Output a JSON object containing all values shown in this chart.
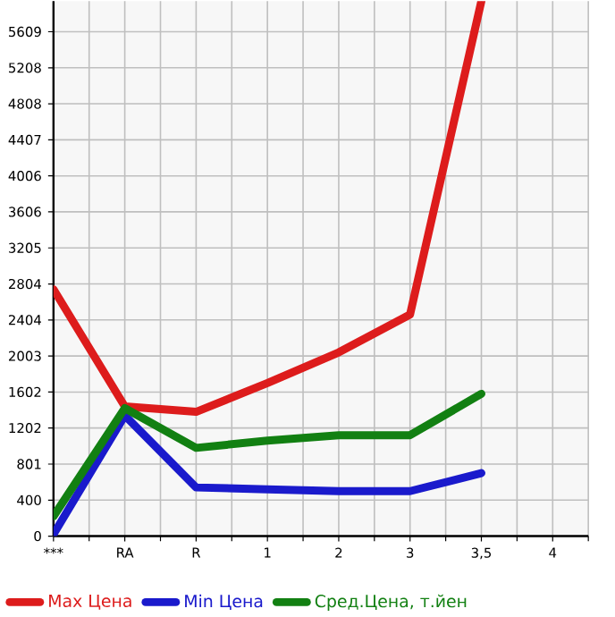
{
  "chart_data": {
    "type": "line",
    "categories": [
      "***",
      "RA",
      "R",
      "1",
      "2",
      "3",
      "3,5",
      "4"
    ],
    "series": [
      {
        "name": "Max Цена",
        "color": "#dd1c1c",
        "values": [
          2744,
          1442,
          1382,
          1702,
          2043,
          2464,
          5950,
          null
        ]
      },
      {
        "name": "Min Цена",
        "color": "#1a1acc",
        "values": [
          20,
          1342,
          541,
          521,
          500,
          500,
          701,
          null
        ]
      },
      {
        "name": "Сред.Цена, т.йен",
        "color": "#128012",
        "values": [
          220,
          1422,
          981,
          1062,
          1122,
          1122,
          1582,
          null
        ]
      }
    ],
    "ylim": [
      0,
      5950
    ],
    "yticks": [
      0,
      400,
      801,
      1202,
      1602,
      2003,
      2404,
      2804,
      3205,
      3606,
      4006,
      4407,
      4808,
      5208,
      5609
    ],
    "grid": true,
    "legend": "bottom",
    "marker": "none",
    "line_style": "solid"
  }
}
